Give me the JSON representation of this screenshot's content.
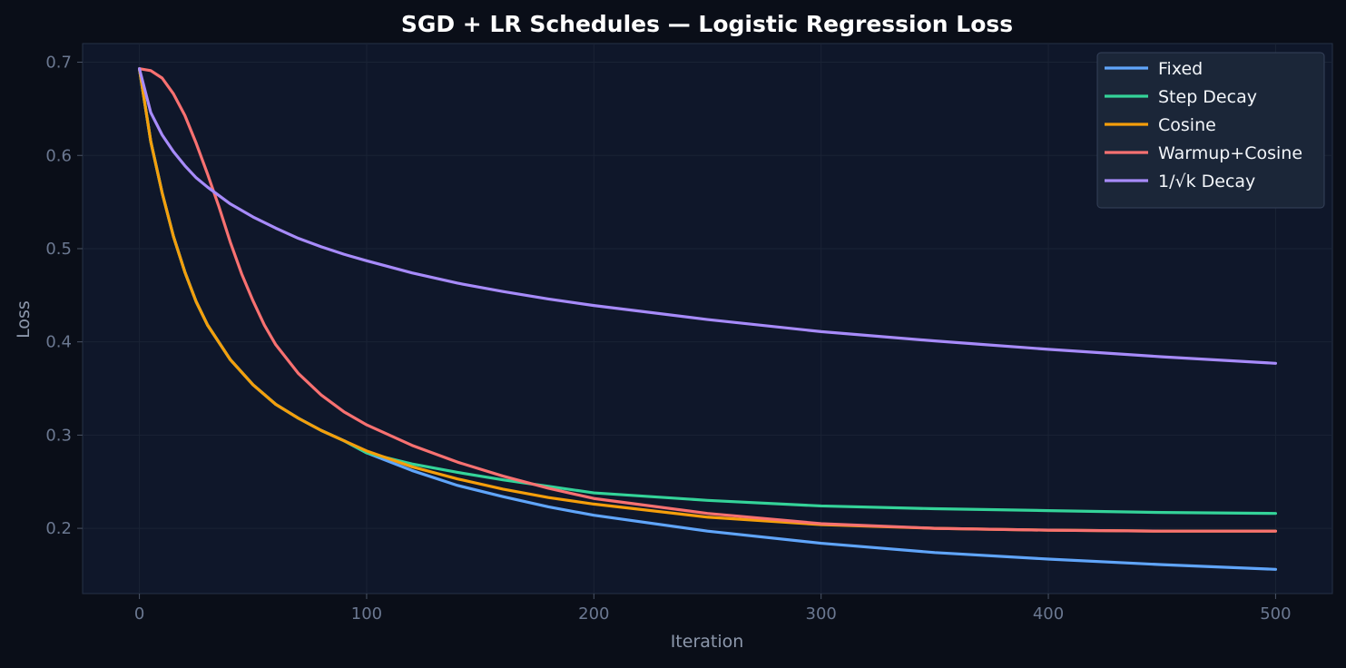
{
  "chart_data": {
    "type": "line",
    "title": "SGD + LR Schedules — Logistic Regression Loss",
    "xlabel": "Iteration",
    "ylabel": "Loss",
    "xlim": [
      -25,
      525
    ],
    "ylim": [
      0.13,
      0.72
    ],
    "xticks": [
      0,
      100,
      200,
      300,
      400,
      500
    ],
    "yticks": [
      0.2,
      0.3,
      0.4,
      0.5,
      0.6,
      0.7
    ],
    "grid": true,
    "legend_position": "top-right",
    "colors": {
      "background": "#0a0e18",
      "plot_background": "#0f172a",
      "grid": "#1a2335",
      "legend_background": "#1b2638"
    },
    "series": [
      {
        "name": "Fixed",
        "color": "#60a5fa",
        "points": [
          [
            0,
            0.693
          ],
          [
            5,
            0.615
          ],
          [
            10,
            0.56
          ],
          [
            15,
            0.513
          ],
          [
            20,
            0.475
          ],
          [
            25,
            0.443
          ],
          [
            30,
            0.418
          ],
          [
            40,
            0.381
          ],
          [
            50,
            0.354
          ],
          [
            60,
            0.333
          ],
          [
            70,
            0.318
          ],
          [
            80,
            0.305
          ],
          [
            90,
            0.294
          ],
          [
            100,
            0.281
          ],
          [
            120,
            0.262
          ],
          [
            140,
            0.246
          ],
          [
            160,
            0.234
          ],
          [
            180,
            0.223
          ],
          [
            200,
            0.214
          ],
          [
            250,
            0.197
          ],
          [
            300,
            0.184
          ],
          [
            350,
            0.174
          ],
          [
            400,
            0.167
          ],
          [
            450,
            0.161
          ],
          [
            500,
            0.156
          ]
        ]
      },
      {
        "name": "Step Decay",
        "color": "#34d399",
        "points": [
          [
            0,
            0.693
          ],
          [
            5,
            0.615
          ],
          [
            10,
            0.56
          ],
          [
            15,
            0.513
          ],
          [
            20,
            0.475
          ],
          [
            25,
            0.443
          ],
          [
            30,
            0.418
          ],
          [
            40,
            0.381
          ],
          [
            50,
            0.354
          ],
          [
            60,
            0.333
          ],
          [
            70,
            0.318
          ],
          [
            80,
            0.305
          ],
          [
            90,
            0.294
          ],
          [
            100,
            0.281
          ],
          [
            120,
            0.269
          ],
          [
            140,
            0.26
          ],
          [
            160,
            0.252
          ],
          [
            180,
            0.245
          ],
          [
            200,
            0.238
          ],
          [
            250,
            0.23
          ],
          [
            300,
            0.224
          ],
          [
            350,
            0.221
          ],
          [
            400,
            0.219
          ],
          [
            450,
            0.217
          ],
          [
            500,
            0.216
          ]
        ]
      },
      {
        "name": "Cosine",
        "color": "#f59e0b",
        "points": [
          [
            0,
            0.693
          ],
          [
            5,
            0.615
          ],
          [
            10,
            0.56
          ],
          [
            15,
            0.513
          ],
          [
            20,
            0.475
          ],
          [
            25,
            0.443
          ],
          [
            30,
            0.418
          ],
          [
            40,
            0.381
          ],
          [
            50,
            0.354
          ],
          [
            60,
            0.333
          ],
          [
            70,
            0.318
          ],
          [
            80,
            0.305
          ],
          [
            90,
            0.294
          ],
          [
            100,
            0.283
          ],
          [
            120,
            0.266
          ],
          [
            140,
            0.253
          ],
          [
            160,
            0.242
          ],
          [
            180,
            0.233
          ],
          [
            200,
            0.226
          ],
          [
            250,
            0.212
          ],
          [
            300,
            0.204
          ],
          [
            350,
            0.2
          ],
          [
            400,
            0.198
          ],
          [
            450,
            0.197
          ],
          [
            500,
            0.197
          ]
        ]
      },
      {
        "name": "Warmup+Cosine",
        "color": "#f87171",
        "points": [
          [
            0,
            0.693
          ],
          [
            5,
            0.691
          ],
          [
            10,
            0.683
          ],
          [
            15,
            0.666
          ],
          [
            20,
            0.643
          ],
          [
            25,
            0.613
          ],
          [
            30,
            0.58
          ],
          [
            35,
            0.545
          ],
          [
            40,
            0.507
          ],
          [
            45,
            0.473
          ],
          [
            50,
            0.444
          ],
          [
            55,
            0.418
          ],
          [
            60,
            0.397
          ],
          [
            70,
            0.366
          ],
          [
            80,
            0.343
          ],
          [
            90,
            0.325
          ],
          [
            100,
            0.311
          ],
          [
            120,
            0.289
          ],
          [
            140,
            0.271
          ],
          [
            160,
            0.256
          ],
          [
            180,
            0.243
          ],
          [
            200,
            0.232
          ],
          [
            250,
            0.216
          ],
          [
            300,
            0.205
          ],
          [
            350,
            0.2
          ],
          [
            400,
            0.198
          ],
          [
            450,
            0.197
          ],
          [
            500,
            0.197
          ]
        ]
      },
      {
        "name": "1/√k Decay",
        "color": "#a78bfa",
        "points": [
          [
            0,
            0.693
          ],
          [
            5,
            0.646
          ],
          [
            10,
            0.622
          ],
          [
            15,
            0.604
          ],
          [
            20,
            0.589
          ],
          [
            25,
            0.576
          ],
          [
            30,
            0.566
          ],
          [
            40,
            0.548
          ],
          [
            50,
            0.534
          ],
          [
            60,
            0.522
          ],
          [
            70,
            0.511
          ],
          [
            80,
            0.502
          ],
          [
            90,
            0.494
          ],
          [
            100,
            0.487
          ],
          [
            120,
            0.474
          ],
          [
            140,
            0.463
          ],
          [
            160,
            0.454
          ],
          [
            180,
            0.446
          ],
          [
            200,
            0.439
          ],
          [
            250,
            0.424
          ],
          [
            300,
            0.411
          ],
          [
            350,
            0.401
          ],
          [
            400,
            0.392
          ],
          [
            450,
            0.384
          ],
          [
            500,
            0.377
          ]
        ]
      }
    ]
  }
}
